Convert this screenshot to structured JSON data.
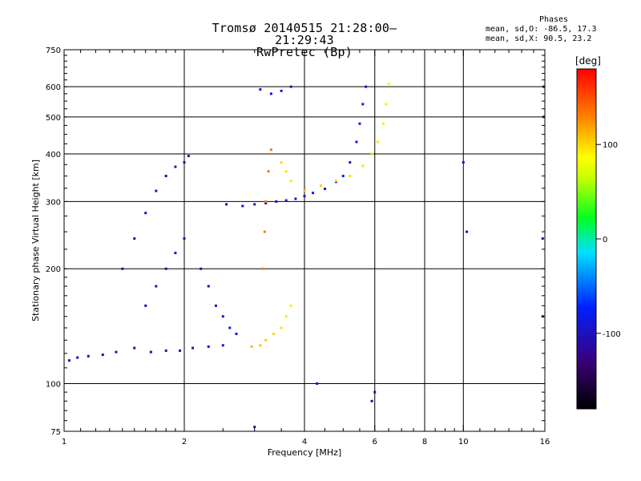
{
  "header": {
    "title_line1": "Tromsø 20140515 21:28:00–21:29:43",
    "title_line2": "RwPretec (Bp)"
  },
  "stats": {
    "heading": "Phases",
    "line_o": "mean, sd,O: -86.5, 17.3",
    "line_x": "mean, sd,X:  90.5, 23.2"
  },
  "colorbar": {
    "label": "[deg]",
    "ticks": [
      "100",
      "0",
      "-100"
    ],
    "tick_values": [
      100,
      0,
      -100
    ],
    "range": [
      -180,
      180
    ]
  },
  "chart_data": {
    "type": "scatter",
    "xlabel": "Frequency [MHz]",
    "ylabel": "Stationary phase Virtual Height [km]",
    "x_scale": "log",
    "y_scale": "log",
    "xlim": [
      1,
      16
    ],
    "ylim": [
      75,
      750
    ],
    "x_ticks": [
      1,
      2,
      4,
      6,
      8,
      10,
      16
    ],
    "x_tick_labels": [
      "1",
      "2",
      "4",
      "6",
      "8",
      "10",
      "16"
    ],
    "y_ticks": [
      75,
      100,
      200,
      300,
      400,
      500,
      600,
      750
    ],
    "y_tick_labels": [
      "75",
      "100",
      "200",
      "300",
      "400",
      "500",
      "600",
      "750"
    ],
    "grid": true,
    "color_variable": "phase (deg)",
    "points": [
      [
        1.03,
        115,
        -115
      ],
      [
        1.08,
        117,
        -110
      ],
      [
        1.15,
        118,
        -112
      ],
      [
        1.25,
        119,
        -110
      ],
      [
        1.35,
        121,
        -108
      ],
      [
        1.5,
        124,
        -106
      ],
      [
        1.65,
        121,
        -104
      ],
      [
        1.8,
        122,
        -102
      ],
      [
        1.95,
        122,
        -100
      ],
      [
        2.1,
        124,
        -98
      ],
      [
        2.3,
        125,
        -96
      ],
      [
        2.5,
        126,
        -94
      ],
      [
        1.4,
        200,
        -110
      ],
      [
        1.5,
        240,
        -105
      ],
      [
        1.6,
        280,
        -104
      ],
      [
        1.7,
        320,
        -103
      ],
      [
        1.8,
        350,
        -102
      ],
      [
        1.9,
        370,
        -101
      ],
      [
        2.0,
        380,
        -100
      ],
      [
        2.05,
        395,
        -99
      ],
      [
        1.6,
        160,
        -106
      ],
      [
        1.7,
        180,
        -104
      ],
      [
        1.8,
        200,
        -103
      ],
      [
        1.9,
        220,
        -102
      ],
      [
        2.0,
        240,
        -101
      ],
      [
        2.2,
        200,
        -97
      ],
      [
        2.3,
        180,
        -95
      ],
      [
        2.4,
        160,
        -92
      ],
      [
        2.5,
        150,
        -90
      ],
      [
        2.6,
        140,
        -88
      ],
      [
        2.7,
        135,
        -85
      ],
      [
        2.55,
        295,
        -95
      ],
      [
        2.8,
        292,
        -92
      ],
      [
        3.0,
        295,
        -92
      ],
      [
        3.2,
        297,
        -91
      ],
      [
        3.4,
        300,
        -90
      ],
      [
        3.6,
        302,
        -90
      ],
      [
        3.8,
        305,
        -89
      ],
      [
        4.0,
        310,
        -89
      ],
      [
        4.2,
        316,
        -88
      ],
      [
        4.5,
        324,
        -88
      ],
      [
        4.8,
        338,
        -87
      ],
      [
        5.0,
        350,
        -86
      ],
      [
        5.2,
        380,
        -86
      ],
      [
        5.4,
        430,
        -86
      ],
      [
        5.5,
        480,
        -85
      ],
      [
        5.6,
        540,
        -85
      ],
      [
        5.7,
        600,
        -85
      ],
      [
        4.0,
        320,
        110
      ],
      [
        4.4,
        330,
        105
      ],
      [
        4.8,
        340,
        100
      ],
      [
        5.2,
        350,
        98
      ],
      [
        5.6,
        372,
        96
      ],
      [
        5.9,
        400,
        95
      ],
      [
        6.1,
        430,
        94
      ],
      [
        6.3,
        480,
        93
      ],
      [
        6.4,
        540,
        92
      ],
      [
        6.5,
        610,
        91
      ],
      [
        2.95,
        125,
        110
      ],
      [
        3.1,
        126,
        108
      ],
      [
        3.2,
        130,
        105
      ],
      [
        3.35,
        135,
        100
      ],
      [
        3.5,
        140,
        97
      ],
      [
        3.6,
        150,
        95
      ],
      [
        3.7,
        160,
        93
      ],
      [
        3.15,
        200,
        130
      ],
      [
        3.18,
        250,
        132
      ],
      [
        3.2,
        300,
        134
      ],
      [
        3.25,
        360,
        135
      ],
      [
        3.3,
        410,
        136
      ],
      [
        3.5,
        380,
        100
      ],
      [
        3.6,
        360,
        95
      ],
      [
        3.7,
        340,
        92
      ],
      [
        3.1,
        590,
        -92
      ],
      [
        3.3,
        575,
        -90
      ],
      [
        3.5,
        585,
        -90
      ],
      [
        3.7,
        600,
        -89
      ],
      [
        10.0,
        380,
        -90
      ],
      [
        10.2,
        250,
        -95
      ],
      [
        15.9,
        600,
        -100
      ],
      [
        15.9,
        500,
        -100
      ],
      [
        15.8,
        240,
        -98
      ],
      [
        15.8,
        150,
        -96
      ],
      [
        5.9,
        90,
        -110
      ],
      [
        6.0,
        95,
        -112
      ],
      [
        4.3,
        100,
        -100
      ],
      [
        3.0,
        77,
        -95
      ]
    ]
  }
}
